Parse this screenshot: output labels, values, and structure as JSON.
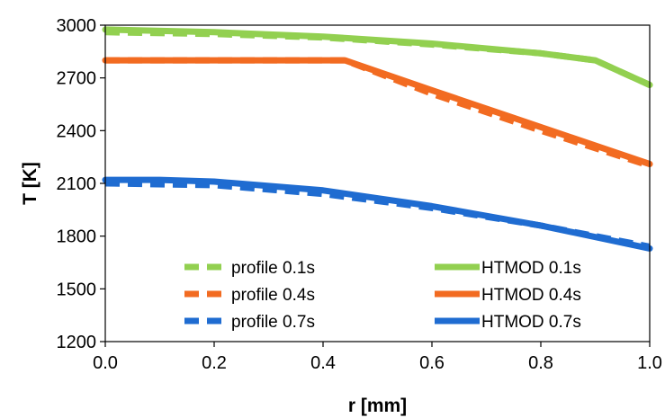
{
  "chart_data": {
    "type": "line",
    "xlabel": "r [mm]",
    "ylabel": "T [K]",
    "xlim": [
      0.0,
      1.0
    ],
    "ylim": [
      1200,
      3000
    ],
    "xticks": [
      "0.0",
      "0.2",
      "0.4",
      "0.6",
      "0.8",
      "1.0"
    ],
    "yticks": [
      "1200",
      "1500",
      "1800",
      "2100",
      "2400",
      "2700",
      "3000"
    ],
    "legend_position": "bottom-inside",
    "series": [
      {
        "name": "profile 0.1s",
        "style": "dashed",
        "color": "#92D050",
        "x": [
          0.0,
          0.2,
          0.4,
          0.6,
          0.8,
          0.9,
          1.0
        ],
        "y": [
          2960,
          2950,
          2930,
          2890,
          2840,
          2800,
          2660
        ]
      },
      {
        "name": "HTMOD 0.1s",
        "style": "solid",
        "color": "#92D050",
        "x": [
          0.0,
          0.2,
          0.4,
          0.6,
          0.8,
          0.9,
          1.0
        ],
        "y": [
          2975,
          2960,
          2935,
          2895,
          2840,
          2800,
          2660
        ]
      },
      {
        "name": "profile 0.4s",
        "style": "dashed",
        "color": "#F26B21",
        "x": [
          0.0,
          0.2,
          0.44,
          0.6,
          0.8,
          1.0
        ],
        "y": [
          2800,
          2800,
          2800,
          2610,
          2400,
          2200
        ]
      },
      {
        "name": "HTMOD 0.4s",
        "style": "solid",
        "color": "#F26B21",
        "x": [
          0.0,
          0.2,
          0.44,
          0.6,
          0.8,
          1.0
        ],
        "y": [
          2800,
          2800,
          2800,
          2630,
          2420,
          2210
        ]
      },
      {
        "name": "profile 0.7s",
        "style": "dashed",
        "color": "#1F6CD1",
        "x": [
          0.0,
          0.2,
          0.4,
          0.6,
          0.8,
          1.0
        ],
        "y": [
          2100,
          2090,
          2040,
          1960,
          1860,
          1740
        ]
      },
      {
        "name": "HTMOD 0.7s",
        "style": "solid",
        "color": "#1F6CD1",
        "x": [
          0.0,
          0.1,
          0.2,
          0.4,
          0.6,
          0.8,
          1.0
        ],
        "y": [
          2120,
          2120,
          2110,
          2060,
          1970,
          1860,
          1730
        ]
      }
    ]
  }
}
